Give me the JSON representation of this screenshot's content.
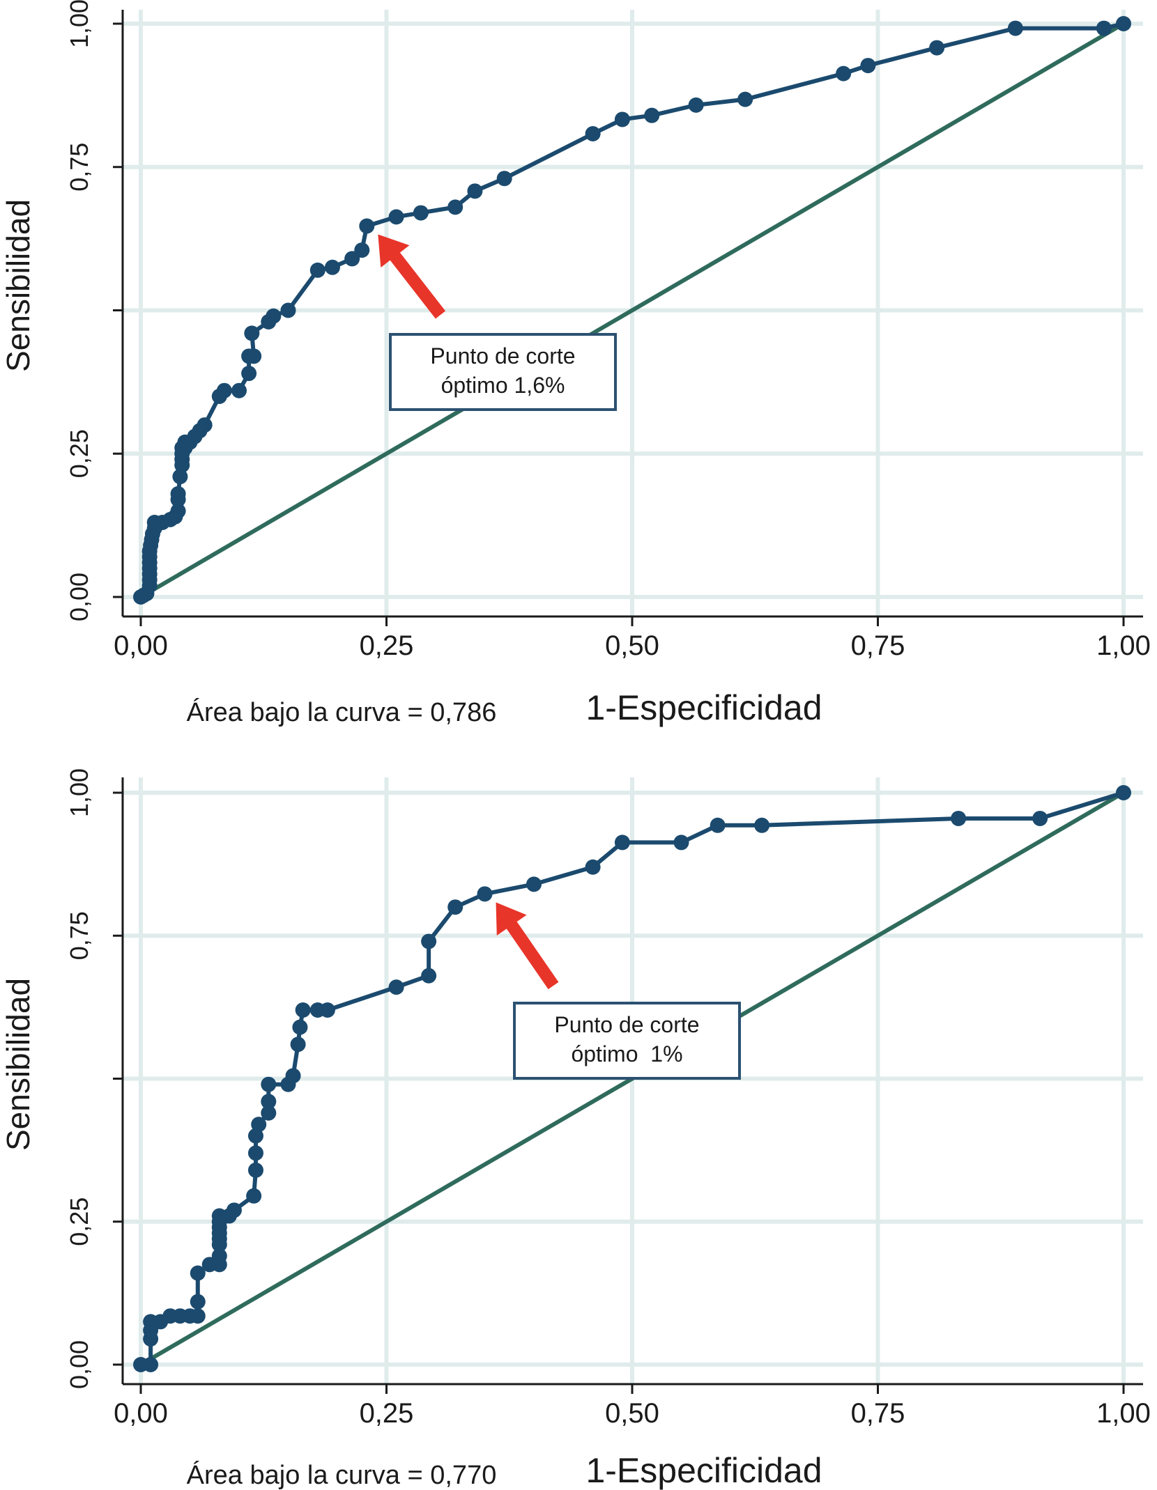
{
  "chart_data": [
    {
      "type": "line",
      "xlabel": "1-Especificidad",
      "ylabel": "Sensibilidad",
      "xlim": [
        0,
        1
      ],
      "ylim": [
        0,
        1
      ],
      "x_ticks": [
        "0,00",
        "0,25",
        "0,50",
        "0,75",
        "1,00"
      ],
      "y_ticks": [
        "0,00",
        "0,25",
        "",
        "0,75",
        "1,00"
      ],
      "grid": true,
      "footnote": "Área bajo la curva = 0,786",
      "annotation": {
        "lines": [
          "Punto de corte",
          "óptimo 1,6%"
        ],
        "points_to": [
          0.23,
          0.647
        ]
      },
      "colors": {
        "roc": "#1b4a6e",
        "reference": "#2f6b5c",
        "arrow": "#e8352a",
        "grid": "#dfeceb",
        "box": "#2c5171"
      },
      "series": [
        {
          "x": [
            0,
            0.003,
            0.006,
            0.009,
            0.009,
            0.009,
            0.009,
            0.009,
            0.009,
            0.009,
            0.01,
            0.011,
            0.012,
            0.014,
            0.014,
            0.022,
            0.03,
            0.035,
            0.038,
            0.038,
            0.038,
            0.04,
            0.042,
            0.042,
            0.042,
            0.042,
            0.045,
            0.045,
            0.05,
            0.055,
            0.06,
            0.065,
            0.08,
            0.085,
            0.1,
            0.11,
            0.11,
            0.115,
            0.113,
            0.13,
            0.135,
            0.15,
            0.18,
            0.195,
            0.215,
            0.225,
            0.23,
            0.26,
            0.285,
            0.32,
            0.34,
            0.37,
            0.46,
            0.49,
            0.52,
            0.565,
            0.615,
            0.715,
            0.74,
            0.81,
            0.89,
            0.98,
            1.0
          ],
          "y": [
            0,
            0.003,
            0.006,
            0.02,
            0.03,
            0.04,
            0.05,
            0.06,
            0.07,
            0.08,
            0.09,
            0.1,
            0.11,
            0.12,
            0.13,
            0.13,
            0.135,
            0.14,
            0.15,
            0.17,
            0.18,
            0.21,
            0.23,
            0.24,
            0.25,
            0.26,
            0.26,
            0.27,
            0.27,
            0.28,
            0.29,
            0.3,
            0.35,
            0.36,
            0.36,
            0.39,
            0.42,
            0.42,
            0.46,
            0.48,
            0.49,
            0.5,
            0.57,
            0.575,
            0.59,
            0.605,
            0.647,
            0.663,
            0.67,
            0.68,
            0.708,
            0.73,
            0.808,
            0.833,
            0.84,
            0.858,
            0.868,
            0.913,
            0.927,
            0.958,
            0.992,
            0.992,
            1.0
          ]
        },
        {
          "x": [
            0,
            1
          ],
          "y": [
            0,
            1
          ]
        }
      ]
    },
    {
      "type": "line",
      "xlabel": "1-Especificidad",
      "ylabel": "Sensibilidad",
      "xlim": [
        0,
        1
      ],
      "ylim": [
        0,
        1
      ],
      "x_ticks": [
        "0,00",
        "0,25",
        "0,50",
        "0,75",
        "1,00"
      ],
      "y_ticks": [
        "0,00",
        "0,25",
        "",
        "0,75",
        "1,00"
      ],
      "grid": true,
      "footnote": "Área bajo la curva = 0,770",
      "annotation": {
        "lines": [
          "Punto de corte",
          "óptimo  1%"
        ],
        "points_to": [
          0.35,
          0.823
        ]
      },
      "colors": {
        "roc": "#1b4a6e",
        "reference": "#2f6b5c",
        "arrow": "#e8352a",
        "grid": "#dfeceb",
        "box": "#2c5171"
      },
      "series": [
        {
          "x": [
            0,
            0.01,
            0.01,
            0.01,
            0.01,
            0.02,
            0.03,
            0.04,
            0.05,
            0.058,
            0.058,
            0.058,
            0.07,
            0.08,
            0.08,
            0.08,
            0.08,
            0.08,
            0.08,
            0.08,
            0.08,
            0.09,
            0.095,
            0.115,
            0.117,
            0.117,
            0.117,
            0.12,
            0.13,
            0.13,
            0.13,
            0.15,
            0.155,
            0.16,
            0.162,
            0.165,
            0.18,
            0.19,
            0.26,
            0.293,
            0.293,
            0.32,
            0.35,
            0.4,
            0.46,
            0.49,
            0.55,
            0.587,
            0.632,
            0.832,
            0.915,
            1.0
          ],
          "y": [
            0,
            0,
            0.045,
            0.06,
            0.075,
            0.075,
            0.085,
            0.085,
            0.085,
            0.085,
            0.11,
            0.16,
            0.175,
            0.175,
            0.19,
            0.21,
            0.22,
            0.23,
            0.24,
            0.25,
            0.26,
            0.26,
            0.27,
            0.295,
            0.34,
            0.37,
            0.4,
            0.42,
            0.44,
            0.46,
            0.49,
            0.49,
            0.505,
            0.56,
            0.59,
            0.62,
            0.62,
            0.62,
            0.66,
            0.68,
            0.74,
            0.8,
            0.823,
            0.84,
            0.87,
            0.913,
            0.913,
            0.943,
            0.943,
            0.955,
            0.955,
            1.0
          ]
        },
        {
          "x": [
            0,
            1
          ],
          "y": [
            0,
            1
          ]
        }
      ]
    }
  ]
}
